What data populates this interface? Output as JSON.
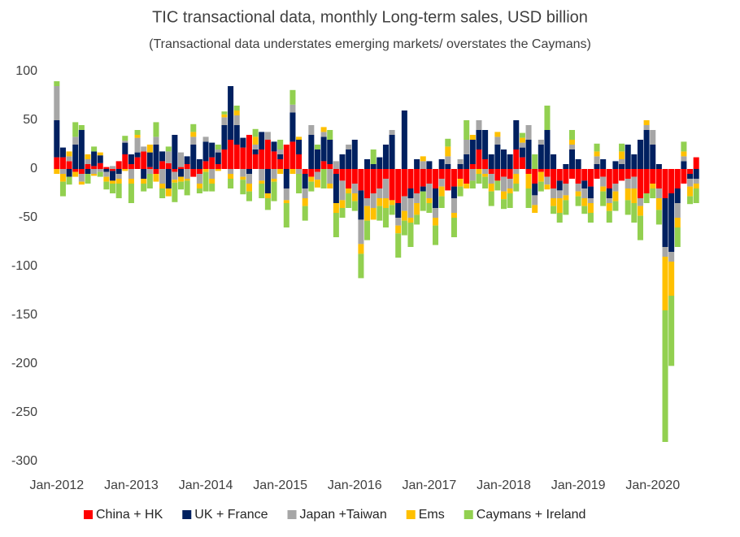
{
  "chart_data": {
    "type": "stacked_bar",
    "title": "TIC transactional data, monthly Long-term sales, USD billion",
    "subtitle": "(Transactional data understates emerging markets/ overstates the Caymans)",
    "categories": [
      "Jan-2012",
      null,
      null,
      null,
      null,
      null,
      null,
      null,
      null,
      null,
      null,
      null,
      "Jan-2013",
      null,
      null,
      null,
      null,
      null,
      null,
      null,
      null,
      null,
      null,
      null,
      "Jan-2014",
      null,
      null,
      null,
      null,
      null,
      null,
      null,
      null,
      null,
      null,
      null,
      "Jan-2015",
      null,
      null,
      null,
      null,
      null,
      null,
      null,
      null,
      null,
      null,
      null,
      "Jan-2016",
      null,
      null,
      null,
      null,
      null,
      null,
      null,
      null,
      null,
      null,
      null,
      "Jan-2017",
      null,
      null,
      null,
      null,
      null,
      null,
      null,
      null,
      null,
      null,
      null,
      "Jan-2018",
      null,
      null,
      null,
      null,
      null,
      null,
      null,
      null,
      null,
      null,
      null,
      "Jan-2019",
      null,
      null,
      null,
      null,
      null,
      null,
      null,
      null,
      null,
      null,
      null,
      "Jan-2020",
      null,
      null,
      null,
      null,
      null,
      null,
      null
    ],
    "series": [
      {
        "name": "China + HK",
        "color": "#ff0000",
        "values": [
          12,
          12,
          8,
          -3,
          -5,
          5,
          3,
          6,
          2,
          -2,
          8,
          15,
          5,
          12,
          18,
          2,
          -5,
          8,
          6,
          -3,
          2,
          5,
          -8,
          -5,
          8,
          12,
          5,
          20,
          30,
          25,
          22,
          35,
          15,
          20,
          30,
          18,
          10,
          25,
          28,
          15,
          -5,
          -8,
          -3,
          8,
          5,
          -5,
          -12,
          -20,
          -15,
          -22,
          -30,
          -25,
          -20,
          -10,
          -32,
          -35,
          -28,
          -20,
          -25,
          -18,
          -15,
          -20,
          -10,
          -22,
          -18,
          -10,
          -15,
          5,
          20,
          10,
          -5,
          -12,
          -8,
          -10,
          20,
          12,
          -5,
          -15,
          -3,
          -8,
          -20,
          -12,
          -15,
          -10,
          -15,
          -12,
          -18,
          -10,
          -8,
          -20,
          -15,
          -12,
          -10,
          -8,
          -30,
          -25,
          -15,
          -20,
          -30,
          -25,
          -20,
          -15,
          -5,
          12
        ]
      },
      {
        "name": "UK + France",
        "color": "#002060",
        "values": [
          38,
          10,
          -8,
          25,
          40,
          -5,
          15,
          8,
          -3,
          -10,
          -5,
          12,
          10,
          5,
          -10,
          15,
          25,
          10,
          -20,
          35,
          -8,
          8,
          25,
          10,
          20,
          15,
          12,
          25,
          55,
          20,
          10,
          -5,
          5,
          18,
          -25,
          10,
          5,
          -20,
          30,
          15,
          -15,
          35,
          20,
          25,
          25,
          -30,
          15,
          20,
          30,
          -30,
          10,
          5,
          12,
          25,
          35,
          -15,
          60,
          -10,
          10,
          -5,
          8,
          -20,
          10,
          5,
          -12,
          5,
          15,
          25,
          20,
          30,
          15,
          25,
          20,
          15,
          30,
          10,
          30,
          -12,
          25,
          40,
          15,
          -10,
          5,
          20,
          10,
          -8,
          -12,
          5,
          10,
          -10,
          8,
          5,
          25,
          15,
          30,
          40,
          25,
          5,
          -50,
          -60,
          -15,
          8,
          -5,
          -10
        ]
      },
      {
        "name": "Japan +Taiwan",
        "color": "#a6a6a6",
        "values": [
          35,
          -5,
          5,
          8,
          -8,
          5,
          -5,
          -3,
          -5,
          3,
          -5,
          2,
          -10,
          15,
          5,
          -5,
          8,
          -15,
          12,
          -8,
          15,
          -10,
          8,
          -10,
          5,
          -10,
          3,
          8,
          -5,
          10,
          -8,
          -10,
          5,
          -12,
          8,
          -10,
          5,
          -12,
          8,
          -5,
          -10,
          10,
          -8,
          5,
          -15,
          8,
          -20,
          5,
          -10,
          -25,
          -8,
          -15,
          -10,
          -20,
          5,
          -8,
          -15,
          -20,
          -10,
          8,
          -15,
          -10,
          -8,
          8,
          -15,
          5,
          15,
          -12,
          10,
          -5,
          -10,
          8,
          -15,
          -10,
          -5,
          5,
          15,
          -10,
          5,
          -8,
          -10,
          -8,
          -12,
          5,
          -8,
          -10,
          -5,
          8,
          -10,
          -5,
          -8,
          5,
          -10,
          -12,
          -8,
          5,
          15,
          -10,
          -10,
          -10,
          -15,
          5,
          -8,
          -5
        ]
      },
      {
        "name": "Ems",
        "color": "#ffc000",
        "values": [
          -5,
          -8,
          5,
          -5,
          -3,
          5,
          -2,
          3,
          -5,
          -3,
          -5,
          -2,
          -5,
          3,
          -5,
          8,
          -8,
          -5,
          -8,
          -3,
          -5,
          -2,
          5,
          -5,
          -3,
          -5,
          -2,
          3,
          -5,
          5,
          -3,
          -8,
          8,
          -3,
          -5,
          -3,
          -5,
          -3,
          -5,
          3,
          -8,
          -5,
          -8,
          5,
          -5,
          -10,
          -8,
          -5,
          -8,
          -10,
          -15,
          -12,
          -8,
          -10,
          -5,
          -8,
          -10,
          -5,
          -12,
          5,
          -5,
          -8,
          -10,
          10,
          -5,
          -8,
          -5,
          5,
          -5,
          -3,
          -8,
          5,
          -8,
          -5,
          -10,
          5,
          -15,
          -8,
          -10,
          -5,
          -8,
          -15,
          -5,
          5,
          -5,
          -8,
          -10,
          5,
          -5,
          -8,
          -10,
          8,
          -12,
          -15,
          -10,
          5,
          -5,
          -12,
          -55,
          -35,
          -10,
          5,
          -10,
          -5
        ]
      },
      {
        "name": "Caymans + Ireland",
        "color": "#92d050",
        "values": [
          5,
          -15,
          -8,
          15,
          5,
          -10,
          5,
          -5,
          -8,
          -10,
          -15,
          5,
          -20,
          5,
          -8,
          -15,
          15,
          -10,
          5,
          -20,
          -8,
          -15,
          8,
          -5,
          -20,
          -8,
          5,
          3,
          -10,
          5,
          -15,
          -10,
          8,
          -15,
          -12,
          -20,
          10,
          -25,
          15,
          -20,
          -15,
          -10,
          5,
          -20,
          10,
          -25,
          -10,
          -15,
          -10,
          -25,
          -20,
          15,
          -15,
          -20,
          -10,
          -25,
          -15,
          -25,
          -10,
          -20,
          -10,
          -20,
          -12,
          8,
          -20,
          -10,
          20,
          -8,
          -10,
          -12,
          -15,
          -10,
          -10,
          -15,
          -8,
          5,
          -20,
          15,
          -10,
          25,
          -8,
          -10,
          -15,
          10,
          -10,
          -8,
          -10,
          8,
          -15,
          -12,
          -10,
          8,
          -15,
          -20,
          -25,
          -10,
          -10,
          -15,
          -135,
          -72,
          -20,
          10,
          -8,
          -15
        ]
      }
    ],
    "ylim": [
      -300,
      100
    ],
    "yticks": [
      -300,
      -250,
      -200,
      -150,
      -100,
      -50,
      0,
      50,
      100
    ],
    "grid": false,
    "legend": "bottom"
  }
}
